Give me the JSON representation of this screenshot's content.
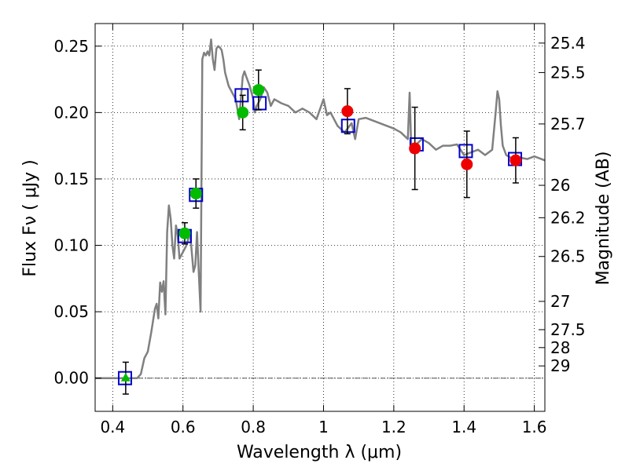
{
  "chart_data": {
    "type": "scatter",
    "xlabel": "Wavelength  λ (μm)",
    "ylabel": "Flux  Fν  ( μJy )",
    "ylabel_right": "Magnitude (AB)",
    "xlim": [
      0.35,
      1.63
    ],
    "ylim": [
      -0.025,
      0.267
    ],
    "grid": true,
    "x_ticks": [
      0.4,
      0.6,
      0.8,
      1.0,
      1.2,
      1.4,
      1.6
    ],
    "x_tick_labels": [
      "0.4",
      "0.6",
      "0.8",
      "1",
      "1.2",
      "1.4",
      "1.6"
    ],
    "y_ticks": [
      0.0,
      0.05,
      0.1,
      0.15,
      0.2,
      0.25
    ],
    "y_tick_labels": [
      "0.00",
      "0.05",
      "0.10",
      "0.15",
      "0.20",
      "0.25"
    ],
    "right_ticks": [
      {
        "label": "25.4",
        "flux": 0.2523
      },
      {
        "label": "25.5",
        "flux": 0.2301
      },
      {
        "label": "25.7",
        "flux": 0.1914
      },
      {
        "label": "26",
        "flux": 0.1452
      },
      {
        "label": "26.2",
        "flux": 0.1208
      },
      {
        "label": "26.5",
        "flux": 0.0916
      },
      {
        "label": "27",
        "flux": 0.0578
      },
      {
        "label": "27.5",
        "flux": 0.0365
      },
      {
        "label": "28",
        "flux": 0.023
      },
      {
        "label": "29",
        "flux": 0.0092
      }
    ],
    "zero_line": 0.0,
    "colors": {
      "model": "#808080",
      "green": "#00bb00",
      "red": "#ee0000",
      "square": "#0000cc",
      "errorbar": "#000000"
    },
    "series": [
      {
        "kind": "line",
        "x": [
          0.35,
          0.47,
          0.48,
          0.49,
          0.5,
          0.51,
          0.52,
          0.525,
          0.53,
          0.535,
          0.54,
          0.545,
          0.55,
          0.555,
          0.56,
          0.565,
          0.57,
          0.575,
          0.58,
          0.585,
          0.59,
          0.6,
          0.61,
          0.62,
          0.63,
          0.635,
          0.64,
          0.645,
          0.65,
          0.655,
          0.66,
          0.665,
          0.67,
          0.675,
          0.68,
          0.685,
          0.69,
          0.695,
          0.7,
          0.705,
          0.71,
          0.715,
          0.72,
          0.73,
          0.74,
          0.75,
          0.76,
          0.77,
          0.775,
          0.78,
          0.79,
          0.8,
          0.805,
          0.81,
          0.82,
          0.83,
          0.84,
          0.85,
          0.86,
          0.88,
          0.9,
          0.92,
          0.94,
          0.96,
          0.98,
          1.0,
          1.01,
          1.02,
          1.04,
          1.06,
          1.08,
          1.09,
          1.1,
          1.12,
          1.15,
          1.18,
          1.2,
          1.22,
          1.24,
          1.245,
          1.25,
          1.26,
          1.28,
          1.3,
          1.32,
          1.34,
          1.36,
          1.38,
          1.4,
          1.42,
          1.44,
          1.46,
          1.48,
          1.49,
          1.495,
          1.5,
          1.505,
          1.51,
          1.52,
          1.54,
          1.56,
          1.58,
          1.6,
          1.63
        ],
        "y": [
          0.0,
          0.0,
          0.003,
          0.015,
          0.02,
          0.035,
          0.052,
          0.056,
          0.045,
          0.072,
          0.065,
          0.073,
          0.048,
          0.11,
          0.13,
          0.12,
          0.1,
          0.09,
          0.115,
          0.108,
          0.09,
          0.095,
          0.1,
          0.11,
          0.08,
          0.085,
          0.11,
          0.08,
          0.05,
          0.24,
          0.245,
          0.243,
          0.246,
          0.243,
          0.255,
          0.24,
          0.232,
          0.248,
          0.25,
          0.249,
          0.247,
          0.24,
          0.23,
          0.22,
          0.215,
          0.21,
          0.195,
          0.227,
          0.231,
          0.227,
          0.22,
          0.21,
          0.2,
          0.205,
          0.21,
          0.219,
          0.215,
          0.205,
          0.21,
          0.207,
          0.205,
          0.2,
          0.203,
          0.2,
          0.195,
          0.21,
          0.198,
          0.2,
          0.19,
          0.185,
          0.192,
          0.18,
          0.195,
          0.196,
          0.193,
          0.19,
          0.188,
          0.185,
          0.18,
          0.215,
          0.17,
          0.175,
          0.18,
          0.177,
          0.172,
          0.175,
          0.175,
          0.176,
          0.168,
          0.17,
          0.172,
          0.168,
          0.172,
          0.2,
          0.216,
          0.21,
          0.19,
          0.175,
          0.168,
          0.165,
          0.166,
          0.165,
          0.167,
          0.164
        ]
      },
      {
        "kind": "squares",
        "x": [
          0.435,
          0.605,
          0.637,
          0.767,
          0.818,
          1.07,
          1.265,
          1.405,
          1.545
        ],
        "y": [
          0.0,
          0.107,
          0.138,
          0.213,
          0.207,
          0.19,
          0.176,
          0.171,
          0.165
        ]
      },
      {
        "kind": "points",
        "x": [
          0.605,
          0.637,
          0.77,
          0.815
        ],
        "y": [
          0.109,
          0.139,
          0.2,
          0.217
        ],
        "err": [
          0.008,
          0.011,
          0.013,
          0.015
        ],
        "color": "green"
      },
      {
        "kind": "points",
        "x": [
          1.068,
          1.26,
          1.408,
          1.547
        ],
        "y": [
          0.201,
          0.173,
          0.161,
          0.164
        ],
        "err": [
          0.017,
          0.031,
          0.025,
          0.017
        ],
        "color": "red"
      },
      {
        "kind": "triangle",
        "x": [
          0.437
        ],
        "y": [
          0.0
        ],
        "err": [
          0.012
        ],
        "color": "green"
      }
    ]
  }
}
